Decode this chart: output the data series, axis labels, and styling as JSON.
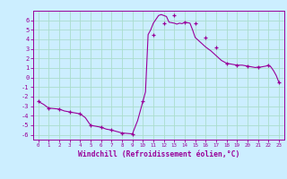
{
  "x": [
    0,
    1,
    2,
    3,
    4,
    5,
    6,
    7,
    8,
    9,
    10,
    11,
    12,
    13,
    14,
    15,
    16,
    17,
    18,
    19,
    20,
    21,
    22,
    23
  ],
  "y": [
    -2.5,
    -3.2,
    -3.3,
    -3.6,
    -3.8,
    -5.0,
    -5.2,
    -5.5,
    -5.8,
    -5.9,
    -2.5,
    4.5,
    5.7,
    6.5,
    5.8,
    5.7,
    4.2,
    3.2,
    1.5,
    1.3,
    1.2,
    1.1,
    1.3,
    -0.5
  ],
  "subx": [
    0,
    0.5,
    1,
    1.5,
    2,
    2.5,
    3,
    3.5,
    4,
    4.5,
    5,
    5.5,
    6,
    6.5,
    7,
    7.5,
    8,
    8.5,
    9,
    9.5,
    10,
    10.25,
    10.5,
    10.75,
    11,
    11.25,
    11.5,
    11.75,
    12,
    12.25,
    12.5,
    12.75,
    13,
    13.25,
    13.5,
    13.75,
    14,
    14.25,
    14.5,
    14.75,
    15,
    15.5,
    16,
    16.5,
    17,
    17.5,
    18,
    18.5,
    19,
    19.5,
    20,
    20.25,
    20.5,
    20.75,
    21,
    21.25,
    21.5,
    21.75,
    22,
    22.25,
    22.5,
    22.75,
    23
  ],
  "suby": [
    -2.5,
    -2.8,
    -3.2,
    -3.25,
    -3.3,
    -3.5,
    -3.6,
    -3.7,
    -3.8,
    -4.2,
    -5.0,
    -5.1,
    -5.2,
    -5.4,
    -5.5,
    -5.65,
    -5.8,
    -5.85,
    -5.9,
    -4.5,
    -2.5,
    -1.5,
    4.5,
    5.0,
    5.7,
    6.1,
    6.5,
    6.6,
    6.5,
    6.4,
    5.8,
    5.75,
    5.7,
    5.6,
    5.7,
    5.65,
    5.8,
    5.75,
    5.7,
    5.0,
    4.2,
    3.7,
    3.2,
    2.8,
    2.3,
    1.8,
    1.5,
    1.4,
    1.3,
    1.3,
    1.2,
    1.15,
    1.1,
    1.05,
    1.1,
    1.1,
    1.15,
    1.2,
    1.3,
    1.1,
    0.7,
    0.2,
    -0.5
  ],
  "line_color": "#990099",
  "marker_color": "#990099",
  "bg_color": "#cceeff",
  "grid_color": "#aaddcc",
  "axis_color": "#990099",
  "xlabel": "Windchill (Refroidissement éolien,°C)",
  "xlim": [
    -0.5,
    23.5
  ],
  "ylim": [
    -6.5,
    7.0
  ],
  "yticks": [
    -6,
    -5,
    -4,
    -3,
    -2,
    -1,
    0,
    1,
    2,
    3,
    4,
    5,
    6
  ],
  "xticks": [
    0,
    1,
    2,
    3,
    4,
    5,
    6,
    7,
    8,
    9,
    10,
    11,
    12,
    13,
    14,
    15,
    16,
    17,
    18,
    19,
    20,
    21,
    22,
    23
  ]
}
